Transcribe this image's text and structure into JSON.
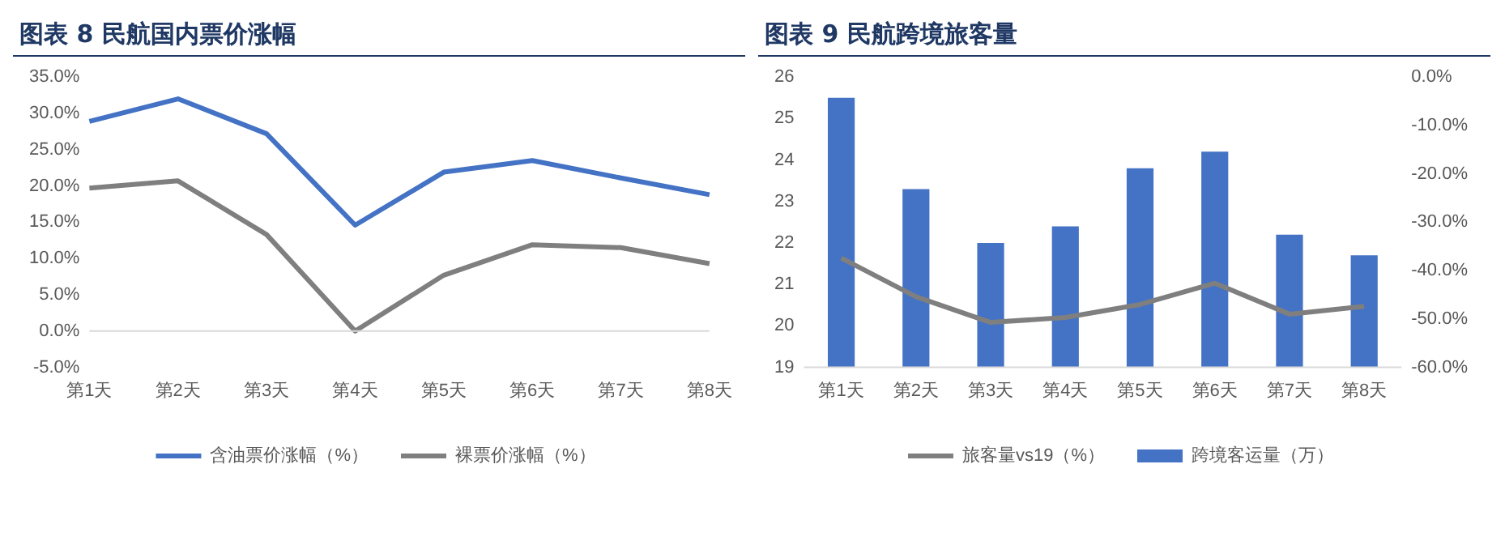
{
  "chart_data": [
    {
      "type": "line",
      "title": "图表 8 民航国内票价涨幅",
      "categories": [
        "第1天",
        "第2天",
        "第3天",
        "第4天",
        "第5天",
        "第6天",
        "第7天",
        "第8天"
      ],
      "series": [
        {
          "name": "含油票价涨幅（%）",
          "color": "#4472c4",
          "values": [
            28.9,
            32.0,
            27.2,
            14.6,
            21.9,
            23.5,
            21.1,
            18.8
          ]
        },
        {
          "name": "裸票价涨幅（%）",
          "color": "#7f7f7f",
          "values": [
            19.7,
            20.7,
            13.3,
            0.0,
            7.7,
            11.9,
            11.5,
            9.3
          ]
        }
      ],
      "ylim": [
        -5,
        35
      ],
      "yticks": [
        {
          "value": -5,
          "label": "-5.0%"
        },
        {
          "value": 0,
          "label": "0.0%"
        },
        {
          "value": 5,
          "label": "5.0%"
        },
        {
          "value": 10,
          "label": "10.0%"
        },
        {
          "value": 15,
          "label": "15.0%"
        },
        {
          "value": 20,
          "label": "20.0%"
        },
        {
          "value": 25,
          "label": "25.0%"
        },
        {
          "value": 30,
          "label": "30.0%"
        },
        {
          "value": 35,
          "label": "35.0%"
        }
      ],
      "legend": "bottom",
      "marker": "none"
    },
    {
      "type": "bar",
      "title": "图表 9 民航跨境旅客量",
      "categories": [
        "第1天",
        "第2天",
        "第3天",
        "第4天",
        "第5天",
        "第6天",
        "第7天",
        "第8天"
      ],
      "series": [
        {
          "name": "跨境客运量（万）",
          "color": "#4472c4",
          "values": [
            25.5,
            23.3,
            22.0,
            22.4,
            23.8,
            24.2,
            22.2,
            21.7
          ]
        },
        {
          "name": "旅客量vs19（%）",
          "type": "line",
          "axis": "y2",
          "color": "#7f7f7f",
          "values": [
            -37.4,
            -45.4,
            -50.7,
            -49.7,
            -47.0,
            -42.6,
            -49.0,
            -47.4
          ]
        }
      ],
      "ylim": [
        19,
        26
      ],
      "yticks": [
        19,
        20,
        21,
        22,
        23,
        24,
        25,
        26
      ],
      "y2lim": [
        -60,
        0
      ],
      "y2ticks": [
        {
          "value": -60,
          "label": "-60.0%"
        },
        {
          "value": -50,
          "label": "-50.0%"
        },
        {
          "value": -40,
          "label": "-40.0%"
        },
        {
          "value": -30,
          "label": "-30.0%"
        },
        {
          "value": -20,
          "label": "-20.0%"
        },
        {
          "value": -10,
          "label": "-10.0%"
        },
        {
          "value": 0,
          "label": "0.0%"
        }
      ],
      "legend": "bottom",
      "marker": "none"
    }
  ]
}
